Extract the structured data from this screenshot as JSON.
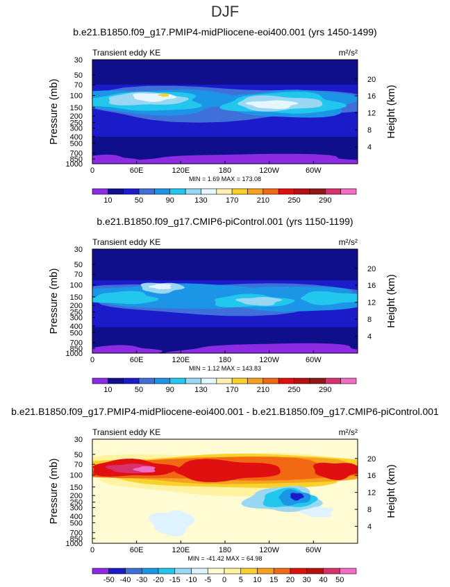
{
  "figure": {
    "season": "DJF"
  },
  "chart_data": [
    {
      "type": "heatmap",
      "title": "b.e21.B1850.f09_g17.PMIP4-midPliocene-eoi400.001 (yrs 1450-1499)",
      "field_label": "Transient eddy KE",
      "units": "m²/s²",
      "ylabel": "Pressure (mb)",
      "ylabel_right": "Height (km)",
      "x_ticks": [
        "0",
        "60E",
        "120E",
        "180",
        "120W",
        "60W"
      ],
      "y_ticks": [
        "30",
        "50",
        "70",
        "100",
        "150",
        "200",
        "250",
        "300",
        "400",
        "500",
        "700",
        "850",
        "1000"
      ],
      "height_ticks": [
        "20",
        "16",
        "12",
        "8",
        "4"
      ],
      "stats": {
        "min": "1.69",
        "max": "173.08"
      },
      "stats_text": "MIN =    1.69   MAX = 173.08",
      "colorbar": {
        "colors": [
          "#8c2be3",
          "#0f0f8c",
          "#1b1bc9",
          "#3f6fd8",
          "#1c95e6",
          "#22c7ee",
          "#9ad7f2",
          "#e6f6ff",
          "#fdf0b0",
          "#f9d12c",
          "#f7a21e",
          "#f16a13",
          "#e01010",
          "#b80f0f",
          "#8f1818",
          "#d8306d",
          "#f46dc4"
        ],
        "labels": [
          "10",
          "50",
          "90",
          "130",
          "170",
          "210",
          "250",
          "290"
        ]
      }
    },
    {
      "type": "heatmap",
      "title": "b.e21.B1850.f09_g17.CMIP6-piControl.001 (yrs 1150-1199)",
      "field_label": "Transient eddy KE",
      "units": "m²/s²",
      "ylabel": "Pressure (mb)",
      "ylabel_right": "Height (km)",
      "x_ticks": [
        "0",
        "60E",
        "120E",
        "180",
        "120W",
        "60W"
      ],
      "y_ticks": [
        "30",
        "50",
        "70",
        "100",
        "150",
        "200",
        "250",
        "300",
        "400",
        "500",
        "700",
        "850",
        "1000"
      ],
      "height_ticks": [
        "20",
        "16",
        "12",
        "8",
        "4"
      ],
      "stats": {
        "min": "1.12",
        "max": "143.83"
      },
      "stats_text": "MIN =    1.12   MAX = 143.83",
      "colorbar": {
        "colors": [
          "#8c2be3",
          "#0f0f8c",
          "#1b1bc9",
          "#3f6fd8",
          "#1c95e6",
          "#22c7ee",
          "#9ad7f2",
          "#e6f6ff",
          "#fdf0b0",
          "#f9d12c",
          "#f7a21e",
          "#f16a13",
          "#e01010",
          "#b80f0f",
          "#8f1818",
          "#d8306d",
          "#f46dc4"
        ],
        "labels": [
          "10",
          "50",
          "90",
          "130",
          "170",
          "210",
          "250",
          "290"
        ]
      }
    },
    {
      "type": "heatmap",
      "title": "b.e21.B1850.f09_g17.PMIP4-midPliocene-eoi400.001 - b.e21.B1850.f09_g17.CMIP6-piControl.001",
      "field_label": "Transient eddy KE",
      "units": "m²/s²",
      "ylabel": "Pressure (mb)",
      "ylabel_right": "Height (km)",
      "x_ticks": [
        "0",
        "60E",
        "120E",
        "180",
        "120W",
        "60W"
      ],
      "y_ticks": [
        "30",
        "50",
        "70",
        "100",
        "150",
        "200",
        "250",
        "300",
        "400",
        "500",
        "700",
        "850",
        "1000"
      ],
      "height_ticks": [
        "20",
        "16",
        "12",
        "8",
        "4"
      ],
      "stats": {
        "min": "-41.42",
        "max": "64.98"
      },
      "stats_text": "MIN =  -41.42   MAX =   64.98",
      "colorbar": {
        "colors": [
          "#8c2be3",
          "#1b1bc9",
          "#3f6fd8",
          "#1c95e6",
          "#22c7ee",
          "#9ad7f2",
          "#dff2ff",
          "#fffbd2",
          "#fff2a0",
          "#f9d12c",
          "#f7a21e",
          "#f16a13",
          "#e01010",
          "#b80f0f",
          "#d8306d",
          "#f46dc4"
        ],
        "labels": [
          "-50",
          "-40",
          "-30",
          "-20",
          "-15",
          "-10",
          "-5",
          "0",
          "5",
          "10",
          "15",
          "20",
          "30",
          "40",
          "50"
        ]
      }
    }
  ]
}
